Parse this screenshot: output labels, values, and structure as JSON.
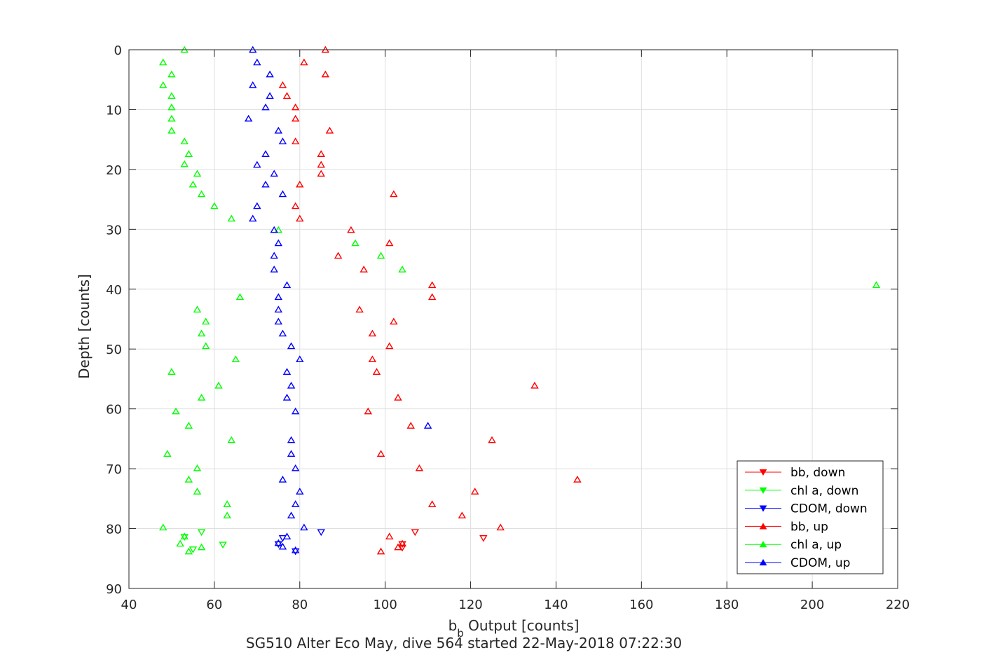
{
  "chart_data": {
    "type": "scatter",
    "xlabel_main": "b",
    "xlabel_sub": "b",
    "xlabel_rest": " Output [counts]",
    "ylabel": "Depth [counts]",
    "caption": "SG510 Alter Eco May, dive 564 started 22-May-2018 07:22:30",
    "xlim": [
      40,
      220
    ],
    "ylim": [
      0,
      90
    ],
    "y_reversed": true,
    "grid": true,
    "legend_position": "bottom-right",
    "xticks": [
      40,
      60,
      80,
      100,
      120,
      140,
      160,
      180,
      200,
      220
    ],
    "yticks": [
      0,
      10,
      20,
      30,
      40,
      50,
      60,
      70,
      80,
      90
    ],
    "series": [
      {
        "name": "bb, down",
        "color": "#ff0000",
        "marker": "triangle-down",
        "points": [
          [
            107,
            80.6
          ],
          [
            123,
            81.6
          ],
          [
            104,
            82.6
          ],
          [
            104,
            83.2
          ]
        ]
      },
      {
        "name": "chl a, down",
        "color": "#00ff00",
        "marker": "triangle-down",
        "points": [
          [
            57,
            80.6
          ],
          [
            53,
            81.4
          ],
          [
            62,
            82.7
          ],
          [
            55,
            83.5
          ]
        ]
      },
      {
        "name": "CDOM, down",
        "color": "#0000ff",
        "marker": "triangle-down",
        "points": [
          [
            85,
            80.6
          ],
          [
            76,
            81.6
          ],
          [
            75,
            82.6
          ],
          [
            79,
            83.8
          ]
        ]
      },
      {
        "name": "bb, up",
        "color": "#ff0000",
        "marker": "triangle-up",
        "points": [
          [
            86,
            0
          ],
          [
            81,
            2.1
          ],
          [
            86,
            4.1
          ],
          [
            76,
            5.9
          ],
          [
            77,
            7.7
          ],
          [
            79,
            9.6
          ],
          [
            79,
            11.5
          ],
          [
            87,
            13.5
          ],
          [
            79,
            15.3
          ],
          [
            85,
            17.4
          ],
          [
            85,
            19.2
          ],
          [
            85,
            20.7
          ],
          [
            80,
            22.5
          ],
          [
            102,
            24.1
          ],
          [
            79,
            26.1
          ],
          [
            80,
            28.2
          ],
          [
            92,
            30.1
          ],
          [
            101,
            32.3
          ],
          [
            89,
            34.4
          ],
          [
            95,
            36.7
          ],
          [
            111,
            39.3
          ],
          [
            111,
            41.3
          ],
          [
            94,
            43.4
          ],
          [
            102,
            45.4
          ],
          [
            97,
            47.4
          ],
          [
            101,
            49.5
          ],
          [
            97,
            51.7
          ],
          [
            98,
            53.8
          ],
          [
            135,
            56.1
          ],
          [
            103,
            58.1
          ],
          [
            96,
            60.4
          ],
          [
            106,
            62.8
          ],
          [
            125,
            65.2
          ],
          [
            99,
            67.5
          ],
          [
            108,
            69.9
          ],
          [
            145,
            71.8
          ],
          [
            121,
            73.8
          ],
          [
            111,
            75.9
          ],
          [
            118,
            77.8
          ],
          [
            127,
            79.8
          ],
          [
            101,
            81.3
          ],
          [
            104,
            82.5
          ],
          [
            103,
            83.1
          ],
          [
            99,
            83.8
          ]
        ]
      },
      {
        "name": "chl a, up",
        "color": "#00ff00",
        "marker": "triangle-up",
        "points": [
          [
            53,
            0
          ],
          [
            48,
            2.1
          ],
          [
            50,
            4.1
          ],
          [
            48,
            5.9
          ],
          [
            50,
            7.7
          ],
          [
            50,
            9.6
          ],
          [
            50,
            11.5
          ],
          [
            50,
            13.5
          ],
          [
            53,
            15.3
          ],
          [
            54,
            17.4
          ],
          [
            53,
            19.1
          ],
          [
            56,
            20.7
          ],
          [
            55,
            22.5
          ],
          [
            57,
            24.1
          ],
          [
            60,
            26.1
          ],
          [
            64,
            28.2
          ],
          [
            75,
            30.1
          ],
          [
            93,
            32.3
          ],
          [
            99,
            34.4
          ],
          [
            104,
            36.7
          ],
          [
            215,
            39.3
          ],
          [
            66,
            41.3
          ],
          [
            56,
            43.4
          ],
          [
            58,
            45.4
          ],
          [
            57,
            47.4
          ],
          [
            58,
            49.5
          ],
          [
            65,
            51.7
          ],
          [
            50,
            53.8
          ],
          [
            61,
            56.1
          ],
          [
            57,
            58.1
          ],
          [
            51,
            60.4
          ],
          [
            54,
            62.8
          ],
          [
            64,
            65.2
          ],
          [
            49,
            67.5
          ],
          [
            56,
            69.9
          ],
          [
            54,
            71.8
          ],
          [
            56,
            73.8
          ],
          [
            63,
            75.9
          ],
          [
            63,
            77.8
          ],
          [
            48,
            79.8
          ],
          [
            53,
            81.3
          ],
          [
            52,
            82.5
          ],
          [
            57,
            83.1
          ],
          [
            54,
            83.8
          ]
        ]
      },
      {
        "name": "CDOM, up",
        "color": "#0000ff",
        "marker": "triangle-up",
        "points": [
          [
            69,
            0
          ],
          [
            70,
            2.1
          ],
          [
            73,
            4.1
          ],
          [
            69,
            5.9
          ],
          [
            73,
            7.7
          ],
          [
            72,
            9.6
          ],
          [
            68,
            11.5
          ],
          [
            75,
            13.5
          ],
          [
            76,
            15.3
          ],
          [
            72,
            17.4
          ],
          [
            70,
            19.2
          ],
          [
            74,
            20.7
          ],
          [
            72,
            22.5
          ],
          [
            76,
            24.1
          ],
          [
            70,
            26.1
          ],
          [
            69,
            28.2
          ],
          [
            74,
            30.1
          ],
          [
            75,
            32.3
          ],
          [
            74,
            34.4
          ],
          [
            74,
            36.7
          ],
          [
            77,
            39.3
          ],
          [
            75,
            41.3
          ],
          [
            75,
            43.4
          ],
          [
            75,
            45.4
          ],
          [
            76,
            47.4
          ],
          [
            78,
            49.5
          ],
          [
            80,
            51.7
          ],
          [
            77,
            53.8
          ],
          [
            78,
            56.1
          ],
          [
            77,
            58.1
          ],
          [
            79,
            60.4
          ],
          [
            110,
            62.8
          ],
          [
            78,
            65.2
          ],
          [
            78,
            67.5
          ],
          [
            79,
            69.9
          ],
          [
            76,
            71.8
          ],
          [
            80,
            73.8
          ],
          [
            79,
            75.9
          ],
          [
            78,
            77.8
          ],
          [
            81,
            79.8
          ],
          [
            77,
            81.3
          ],
          [
            75,
            82.4
          ],
          [
            76,
            83.0
          ],
          [
            79,
            83.6
          ]
        ]
      }
    ]
  }
}
